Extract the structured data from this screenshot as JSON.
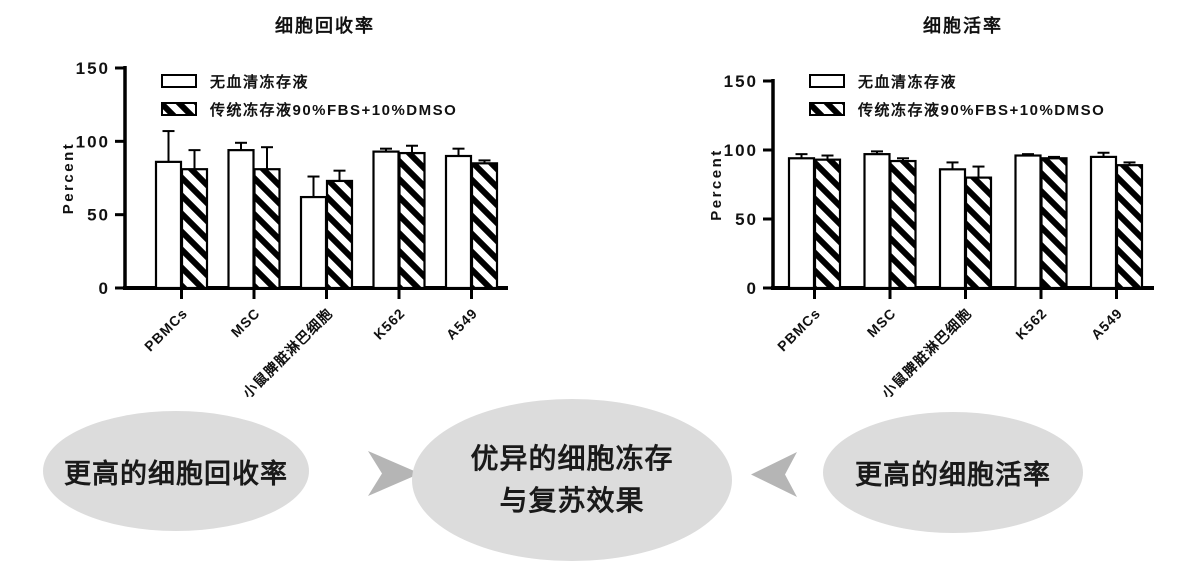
{
  "figure": {
    "background": "#ffffff"
  },
  "colors": {
    "bar_fill": "#ffffff",
    "bar_stroke": "#000000",
    "axis": "#000000",
    "text": "#111111",
    "ellipse_fill": "#dcdcdc",
    "chevron_fill": "#b5b5b5"
  },
  "chart_data": [
    {
      "type": "bar",
      "title": "细胞回收率",
      "xlabel": "",
      "ylabel": "Percent",
      "ylim": [
        0,
        150
      ],
      "yticks": [
        0,
        50,
        100,
        150
      ],
      "grid": false,
      "legend_position": "top-left-inside",
      "categories": [
        "PBMCs",
        "MSC",
        "小鼠脾脏淋巴细胞",
        "K562",
        "A549"
      ],
      "series": [
        {
          "name": "无血清冻存液",
          "style": "white",
          "values": [
            86,
            94,
            62,
            93,
            90
          ],
          "errors_plus": [
            21,
            5,
            14,
            2,
            5
          ]
        },
        {
          "name": "传统冻存液90%FBS+10%DMSO",
          "style": "hatched",
          "values": [
            81,
            81,
            73,
            92,
            85
          ],
          "errors_plus": [
            13,
            15,
            7,
            5,
            2
          ]
        }
      ]
    },
    {
      "type": "bar",
      "title": "细胞活率",
      "xlabel": "",
      "ylabel": "Percent",
      "ylim": [
        0,
        150
      ],
      "yticks": [
        0,
        50,
        100,
        150
      ],
      "grid": false,
      "legend_position": "top-left-inside",
      "categories": [
        "PBMCs",
        "MSC",
        "小鼠脾脏淋巴细胞",
        "K562",
        "A549"
      ],
      "series": [
        {
          "name": "无血清冻存液",
          "style": "white",
          "values": [
            94,
            97,
            86,
            96,
            95
          ],
          "errors_plus": [
            3,
            2,
            5,
            1,
            3
          ]
        },
        {
          "name": "传统冻存液90%FBS+10%DMSO",
          "style": "hatched",
          "values": [
            93,
            92,
            80,
            94,
            89
          ],
          "errors_plus": [
            3,
            2,
            8,
            1,
            2
          ]
        }
      ]
    }
  ],
  "flow": {
    "left": "更高的细胞回收率",
    "center_line1": "优异的细胞冻存",
    "center_line2": "与复苏效果",
    "right": "更高的细胞活率"
  }
}
